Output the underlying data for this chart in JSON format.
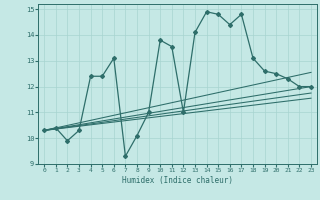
{
  "xlabel": "Humidex (Indice chaleur)",
  "xlim": [
    -0.5,
    23.5
  ],
  "ylim": [
    9,
    15.2
  ],
  "yticks": [
    9,
    10,
    11,
    12,
    13,
    14,
    15
  ],
  "xticks": [
    0,
    1,
    2,
    3,
    4,
    5,
    6,
    7,
    8,
    9,
    10,
    11,
    12,
    13,
    14,
    15,
    16,
    17,
    18,
    19,
    20,
    21,
    22,
    23
  ],
  "bg_color": "#c5e8e5",
  "line_color": "#2e6e6a",
  "line_width": 0.9,
  "marker": "D",
  "marker_size": 2.0,
  "series": [
    [
      0,
      10.3
    ],
    [
      1,
      10.4
    ],
    [
      2,
      9.9
    ],
    [
      3,
      10.3
    ],
    [
      4,
      12.4
    ],
    [
      5,
      12.4
    ],
    [
      6,
      13.1
    ],
    [
      7,
      9.3
    ],
    [
      8,
      10.1
    ],
    [
      9,
      11.0
    ],
    [
      10,
      13.8
    ],
    [
      11,
      13.55
    ],
    [
      12,
      11.0
    ],
    [
      13,
      14.1
    ],
    [
      14,
      14.9
    ],
    [
      15,
      14.8
    ],
    [
      16,
      14.4
    ],
    [
      17,
      14.8
    ],
    [
      18,
      13.1
    ],
    [
      19,
      12.6
    ],
    [
      20,
      12.5
    ],
    [
      21,
      12.3
    ],
    [
      22,
      12.0
    ],
    [
      23,
      12.0
    ]
  ],
  "linear_lines": [
    {
      "x0": 0,
      "y0": 10.3,
      "x1": 23,
      "y1": 12.0
    },
    {
      "x0": 0,
      "y0": 10.3,
      "x1": 23,
      "y1": 11.55
    },
    {
      "x0": 0,
      "y0": 10.3,
      "x1": 23,
      "y1": 11.75
    },
    {
      "x0": 0,
      "y0": 10.3,
      "x1": 23,
      "y1": 12.55
    }
  ],
  "grid_color": "#a8d4d0",
  "spine_color": "#2e6e6a"
}
